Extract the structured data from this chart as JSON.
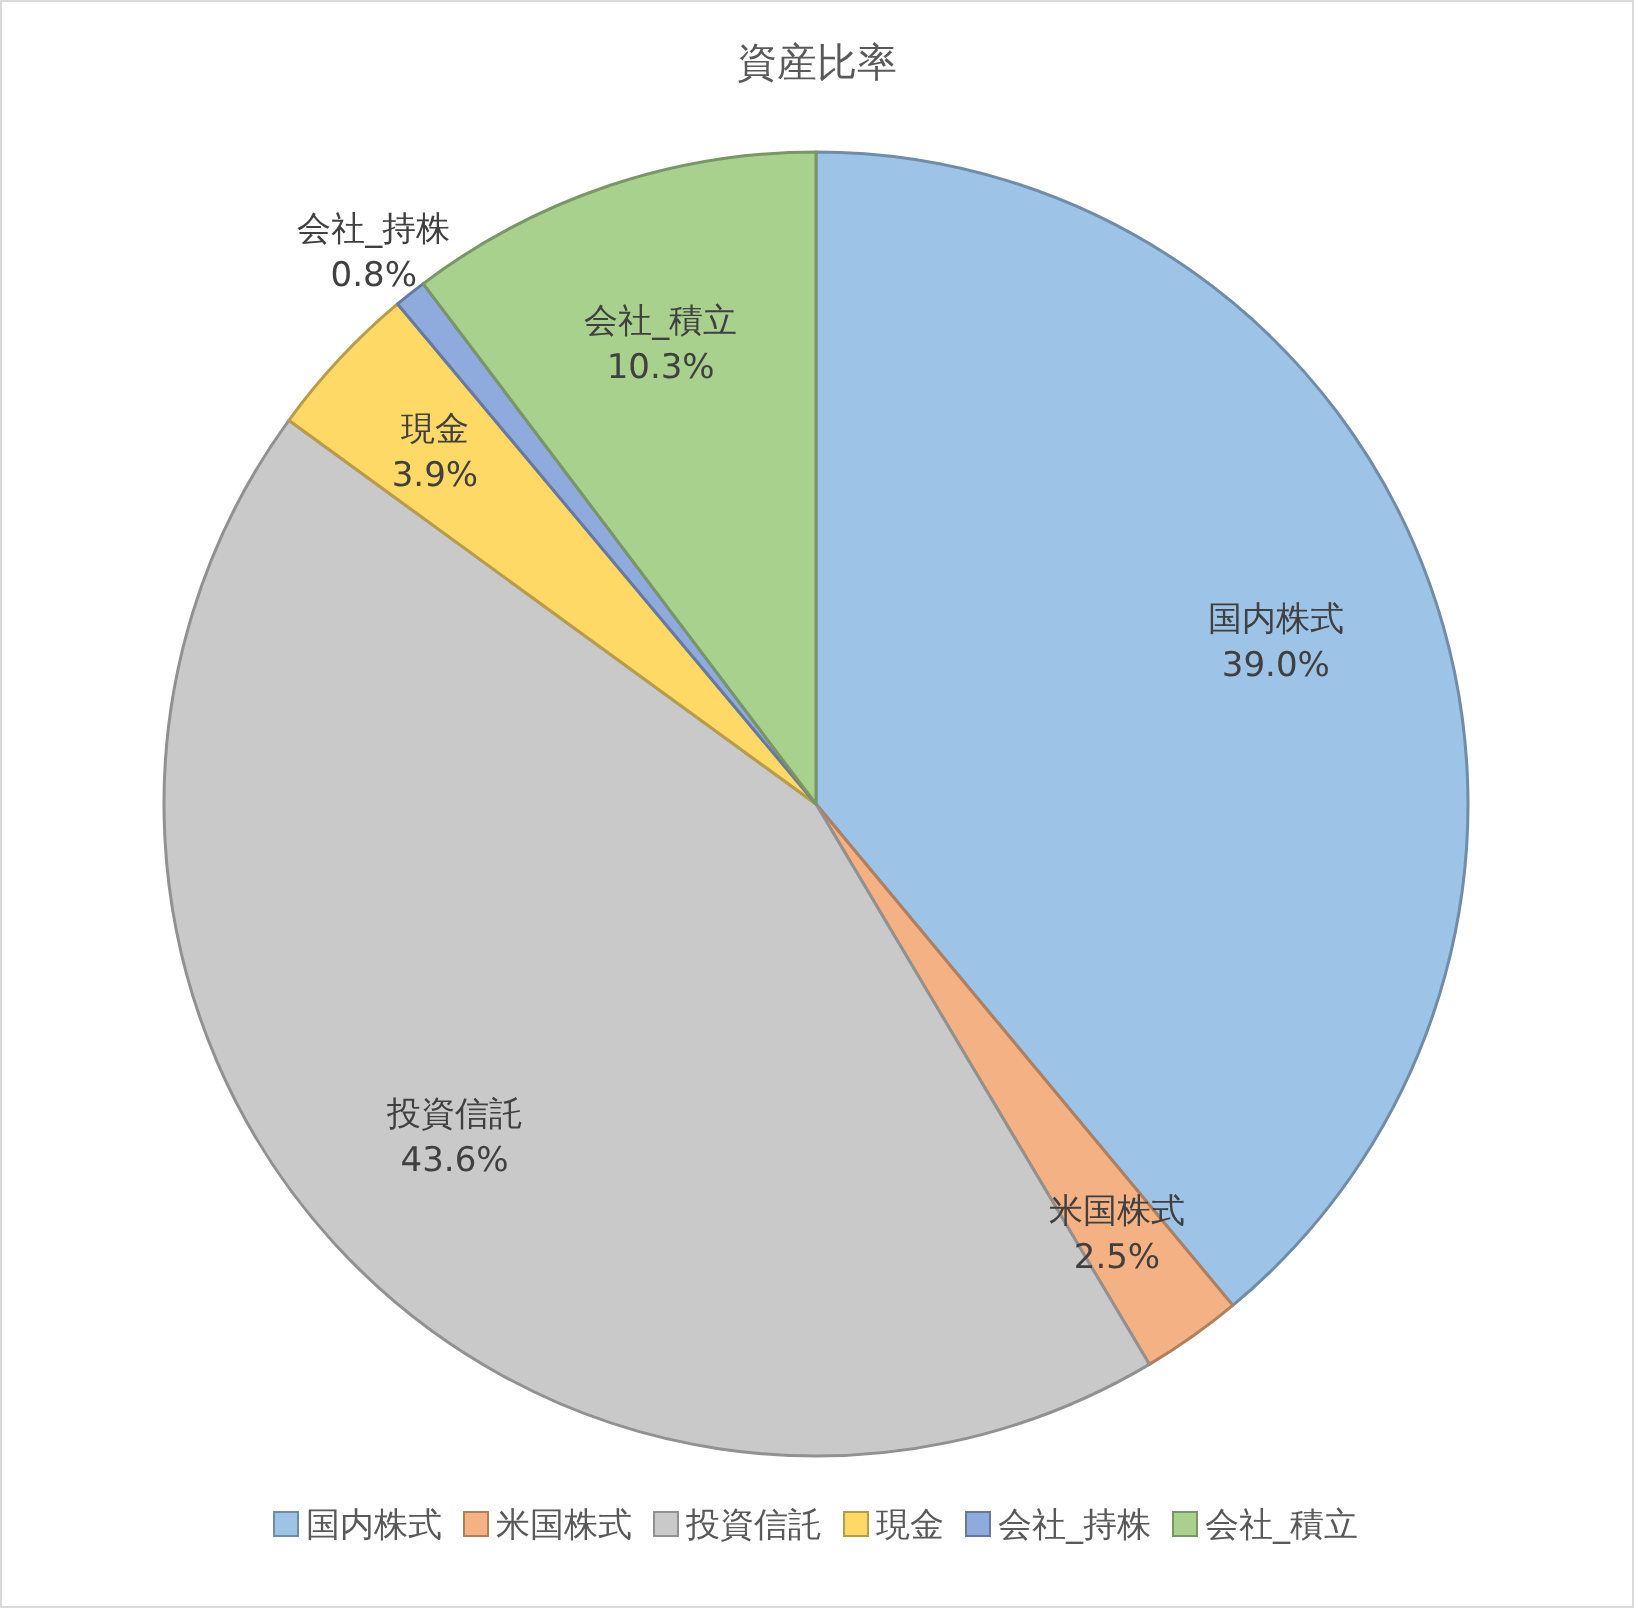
{
  "chart_data": {
    "type": "pie",
    "title": "資産比率",
    "categories": [
      "国内株式",
      "米国株式",
      "投資信託",
      "現金",
      "会社_持株",
      "会社_積立"
    ],
    "values": [
      39.0,
      2.5,
      43.6,
      3.9,
      0.8,
      10.3
    ],
    "value_labels": [
      "39.0%",
      "2.5%",
      "43.6%",
      "3.9%",
      "0.8%",
      "10.3%"
    ],
    "colors": [
      "#9dc3e6",
      "#f4b183",
      "#c9c9c9",
      "#ffd966",
      "#8faadc",
      "#a9d18e"
    ],
    "legend": "bottom"
  }
}
